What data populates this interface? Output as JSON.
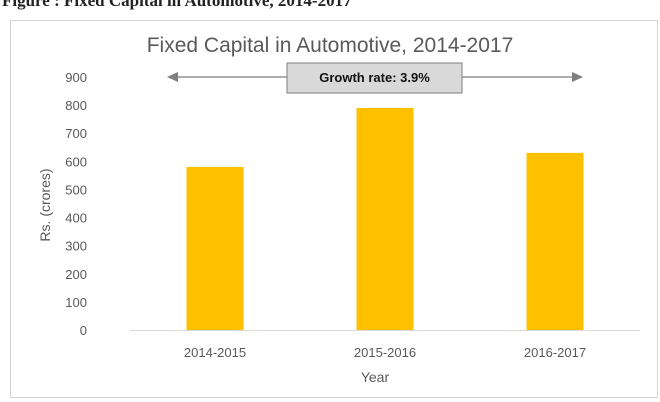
{
  "caption": "Figure    : Fixed Capital in Automotive, 2014-2017",
  "chart_data": {
    "type": "bar",
    "title": "Fixed Capital in Automotive, 2014-2017",
    "categories": [
      "2014-2015",
      "2015-2016",
      "2016-2017"
    ],
    "values": [
      580,
      790,
      630
    ],
    "xlabel": "Year",
    "ylabel": "Rs. (crores)",
    "ylim": [
      0,
      900
    ],
    "yticks": [
      0,
      100,
      200,
      300,
      400,
      500,
      600,
      700,
      800,
      900
    ],
    "grid": false,
    "legend": "none",
    "bar_color": "#FFC000",
    "annotation": "Growth rate: 3.9%"
  }
}
